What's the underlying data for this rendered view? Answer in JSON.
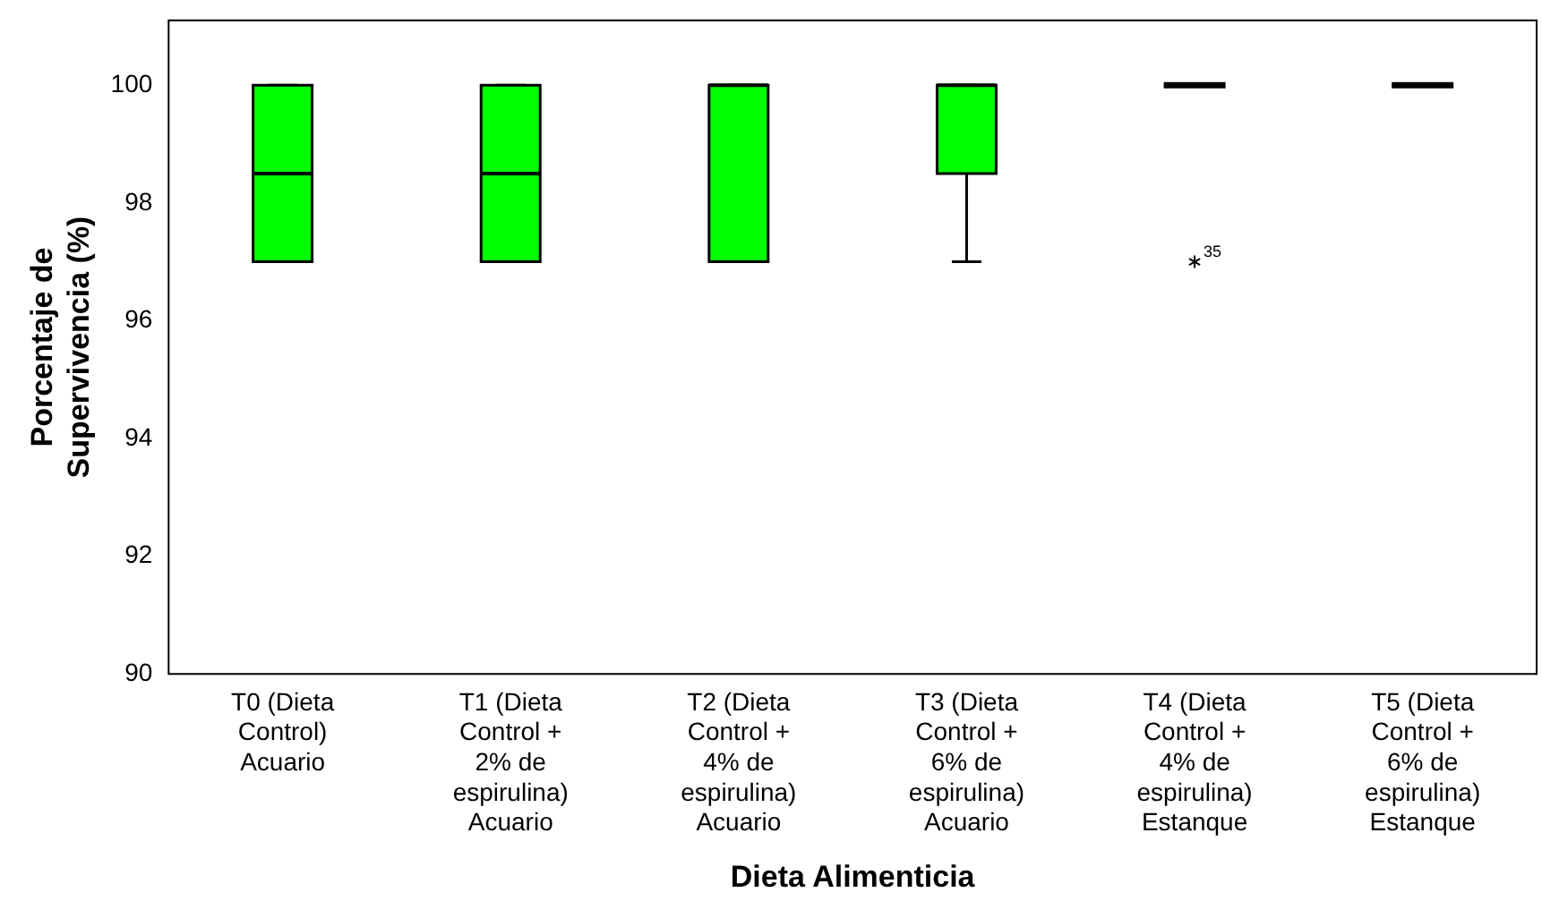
{
  "chart_data": {
    "type": "box",
    "xlabel": "Dieta Alimenticia",
    "ylabel": "Porcentaje de Supervivencia (%)",
    "categories": [
      "T0 (Dieta Control) Acuario",
      "T1 (Dieta Control + 2% de espirulina) Acuario",
      "T2 (Dieta Control + 4% de espirulina) Acuario",
      "T3 (Dieta Control + 6% de espirulina) Acuario",
      "T4 (Dieta Control + 4% de espirulina) Estanque",
      "T5 (Dieta Control + 6% de espirulina) Estanque"
    ],
    "color": "#00ff00",
    "boxes": [
      {
        "low": 97,
        "q1": 97,
        "median": 98.5,
        "q3": 100,
        "high": 100
      },
      {
        "low": 97,
        "q1": 97,
        "median": 98.5,
        "q3": 100,
        "high": 100
      },
      {
        "low": 97,
        "q1": 97,
        "median": 100,
        "q3": 100,
        "high": 100
      },
      {
        "low": 97,
        "q1": 98.5,
        "median": 100,
        "q3": 100,
        "high": 100
      },
      {
        "low": 100,
        "q1": 100,
        "median": 100,
        "q3": 100,
        "high": 100,
        "outliers": [
          97
        ]
      },
      {
        "low": 100,
        "q1": 100,
        "median": 100,
        "q3": 100,
        "high": 100
      }
    ],
    "annotations": [
      "35"
    ],
    "ylim": [
      90,
      101.1
    ],
    "yticks": [
      90,
      92,
      94,
      96,
      98,
      100
    ],
    "grid": false,
    "legend": false
  }
}
